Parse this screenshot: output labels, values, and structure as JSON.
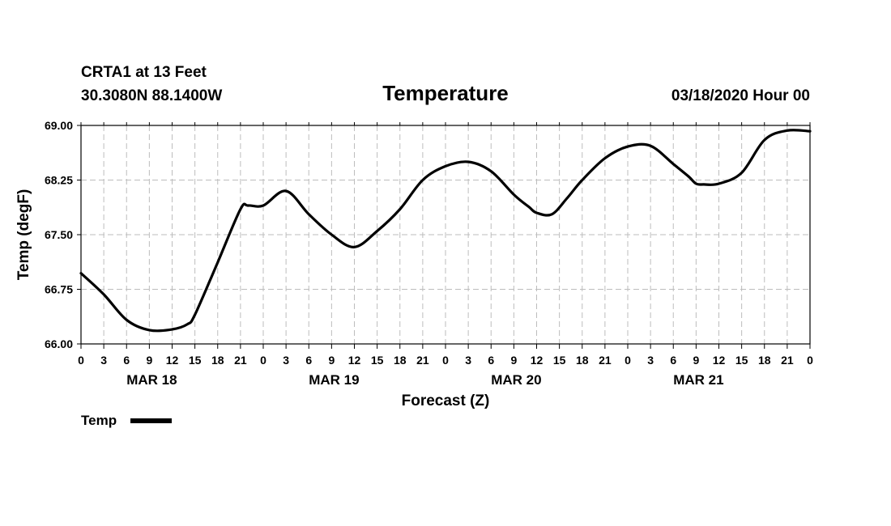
{
  "chart_data": {
    "type": "line",
    "title": "Temperature",
    "station": "CRTA1 at 13 Feet",
    "location": "30.3080N 88.1400W",
    "issued": "03/18/2020 Hour 00",
    "xlabel": "Forecast (Z)",
    "ylabel": "Temp (degF)",
    "ylim": [
      66.0,
      69.0
    ],
    "xlim": [
      0,
      96
    ],
    "grid": true,
    "y_ticks": [
      "66.00",
      "66.75",
      "67.50",
      "68.25",
      "69.00"
    ],
    "x_tick_labels": [
      "0",
      "3",
      "6",
      "9",
      "12",
      "15",
      "18",
      "21",
      "0",
      "3",
      "6",
      "9",
      "12",
      "15",
      "18",
      "21",
      "0",
      "3",
      "6",
      "9",
      "12",
      "15",
      "18",
      "21",
      "0",
      "3",
      "6",
      "9",
      "12",
      "15",
      "18",
      "21",
      "0"
    ],
    "day_labels": [
      {
        "label": "MAR 18",
        "hour": 9
      },
      {
        "label": "MAR 19",
        "hour": 33
      },
      {
        "label": "MAR 20",
        "hour": 57
      },
      {
        "label": "MAR 21",
        "hour": 81
      }
    ],
    "legend": {
      "label": "Temp",
      "position": "bottom-left"
    },
    "series": [
      {
        "name": "Temp",
        "color": "#000000",
        "x": [
          0,
          3,
          6,
          9,
          12,
          14,
          15,
          18,
          21,
          22,
          24,
          27,
          30,
          33,
          36,
          39,
          42,
          45,
          48,
          51,
          54,
          57,
          59,
          60,
          62,
          64,
          66,
          69,
          72,
          75,
          78,
          80,
          81,
          82,
          84,
          87,
          90,
          93,
          96
        ],
        "y": [
          66.97,
          66.68,
          66.33,
          66.19,
          66.2,
          66.27,
          66.4,
          67.12,
          67.85,
          67.9,
          67.9,
          68.1,
          67.78,
          67.5,
          67.33,
          67.55,
          67.85,
          68.25,
          68.44,
          68.5,
          68.37,
          68.05,
          67.88,
          67.8,
          67.78,
          68.0,
          68.25,
          68.55,
          68.71,
          68.72,
          68.47,
          68.3,
          68.2,
          68.19,
          68.2,
          68.35,
          68.8,
          68.93,
          68.92
        ]
      }
    ]
  }
}
